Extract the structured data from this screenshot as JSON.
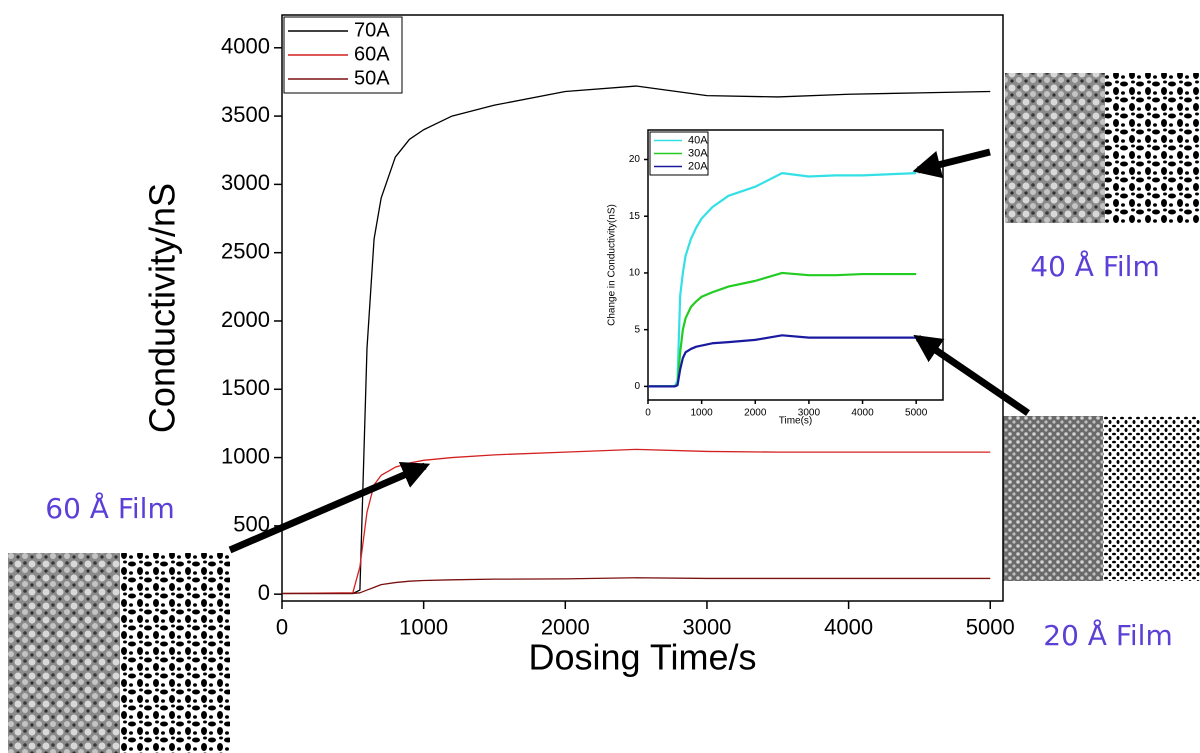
{
  "chart_data": [
    {
      "type": "line",
      "xlabel": "Dosing Time/s",
      "ylabel": "Conductivity/nS",
      "x": [
        0,
        500,
        550,
        600,
        650,
        700,
        800,
        900,
        1000,
        1200,
        1500,
        2000,
        2500,
        3000,
        3500,
        4000,
        4500,
        5000
      ],
      "series": [
        {
          "name": "70A",
          "color": "#000000",
          "values": [
            5,
            5,
            30,
            1800,
            2600,
            2900,
            3200,
            3330,
            3400,
            3500,
            3580,
            3680,
            3720,
            3650,
            3640,
            3660,
            3670,
            3680
          ]
        },
        {
          "name": "60A",
          "color": "#d42020",
          "values": [
            5,
            10,
            200,
            600,
            800,
            870,
            930,
            960,
            980,
            1000,
            1020,
            1040,
            1060,
            1045,
            1040,
            1040,
            1040,
            1040
          ]
        },
        {
          "name": "50A",
          "color": "#7a1010",
          "values": [
            5,
            5,
            10,
            30,
            50,
            70,
            85,
            95,
            100,
            105,
            110,
            112,
            120,
            115,
            115,
            115,
            115,
            115
          ]
        }
      ],
      "xlim": [
        0,
        5090
      ],
      "ylim": [
        -50,
        4240
      ],
      "xticks": [
        0,
        1000,
        2000,
        3000,
        4000,
        5000
      ],
      "yticks": [
        0,
        500,
        1000,
        1500,
        2000,
        2500,
        3000,
        3500,
        4000
      ],
      "legend": "upper left",
      "annotations": [
        "60 Å Film",
        "40 Å Film",
        "20 Å Film"
      ]
    },
    {
      "type": "line",
      "xlabel": "Time(s)",
      "ylabel": "Change in Conductivity(nS)",
      "x": [
        0,
        500,
        550,
        600,
        650,
        700,
        800,
        900,
        1000,
        1200,
        1500,
        2000,
        2500,
        3000,
        3500,
        4000,
        4500,
        5000
      ],
      "series": [
        {
          "name": "40A",
          "color": "#33e0e6",
          "values": [
            0,
            0,
            0.5,
            8,
            10,
            11.5,
            13,
            14,
            14.8,
            15.8,
            16.8,
            17.6,
            18.8,
            18.5,
            18.6,
            18.6,
            18.7,
            18.8
          ]
        },
        {
          "name": "30A",
          "color": "#22cc22",
          "values": [
            0,
            0,
            0.2,
            3,
            5,
            6,
            7,
            7.5,
            7.9,
            8.3,
            8.8,
            9.3,
            10,
            9.8,
            9.8,
            9.9,
            9.9,
            9.9
          ]
        },
        {
          "name": "20A",
          "color": "#1a1aa0",
          "values": [
            0,
            0,
            0.1,
            1.5,
            2.5,
            3,
            3.3,
            3.5,
            3.6,
            3.8,
            3.9,
            4.1,
            4.5,
            4.3,
            4.3,
            4.3,
            4.3,
            4.3
          ]
        }
      ],
      "xlim": [
        0,
        5500
      ],
      "ylim": [
        -1.2,
        22.6
      ],
      "xticks": [
        0,
        1000,
        2000,
        3000,
        4000,
        5000
      ],
      "yticks": [
        0,
        5,
        10,
        15,
        20
      ],
      "legend": "upper left"
    }
  ]
}
